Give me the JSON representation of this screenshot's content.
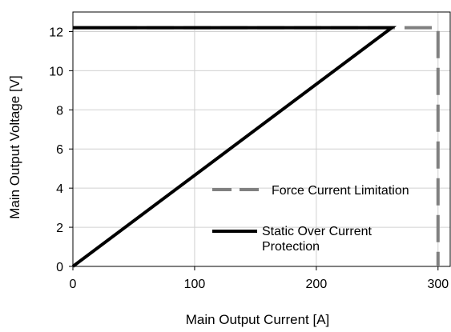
{
  "chart_data": {
    "type": "line",
    "title": "",
    "xlabel": "Main Output Current [A]",
    "ylabel": "Main Output Voltage [V]",
    "xlim": [
      0,
      310
    ],
    "ylim": [
      0,
      13
    ],
    "x_ticks": [
      0,
      100,
      200,
      300
    ],
    "y_ticks": [
      0,
      2,
      4,
      6,
      8,
      10,
      12
    ],
    "x_tick_labels": [
      "0",
      "100",
      "200",
      "300"
    ],
    "y_tick_labels": [
      "0",
      "2",
      "4",
      "6",
      "8",
      "10",
      "12"
    ],
    "grid": true,
    "legend_position": "bottom-right",
    "series": [
      {
        "name": "Force Current Limitation",
        "style": "dashed",
        "color": "#808080",
        "points": [
          [
            0,
            12.2
          ],
          [
            300,
            12.2
          ],
          [
            300,
            0
          ]
        ]
      },
      {
        "name": "Static Over Current Protection",
        "style": "solid",
        "color": "#000000",
        "points": [
          [
            0,
            0
          ],
          [
            262,
            12.2
          ],
          [
            0,
            12.2
          ]
        ]
      }
    ],
    "legend": [
      {
        "lines": [
          "Force Current Limitation"
        ]
      },
      {
        "lines": [
          "Static Over Current",
          "Protection"
        ]
      }
    ]
  }
}
